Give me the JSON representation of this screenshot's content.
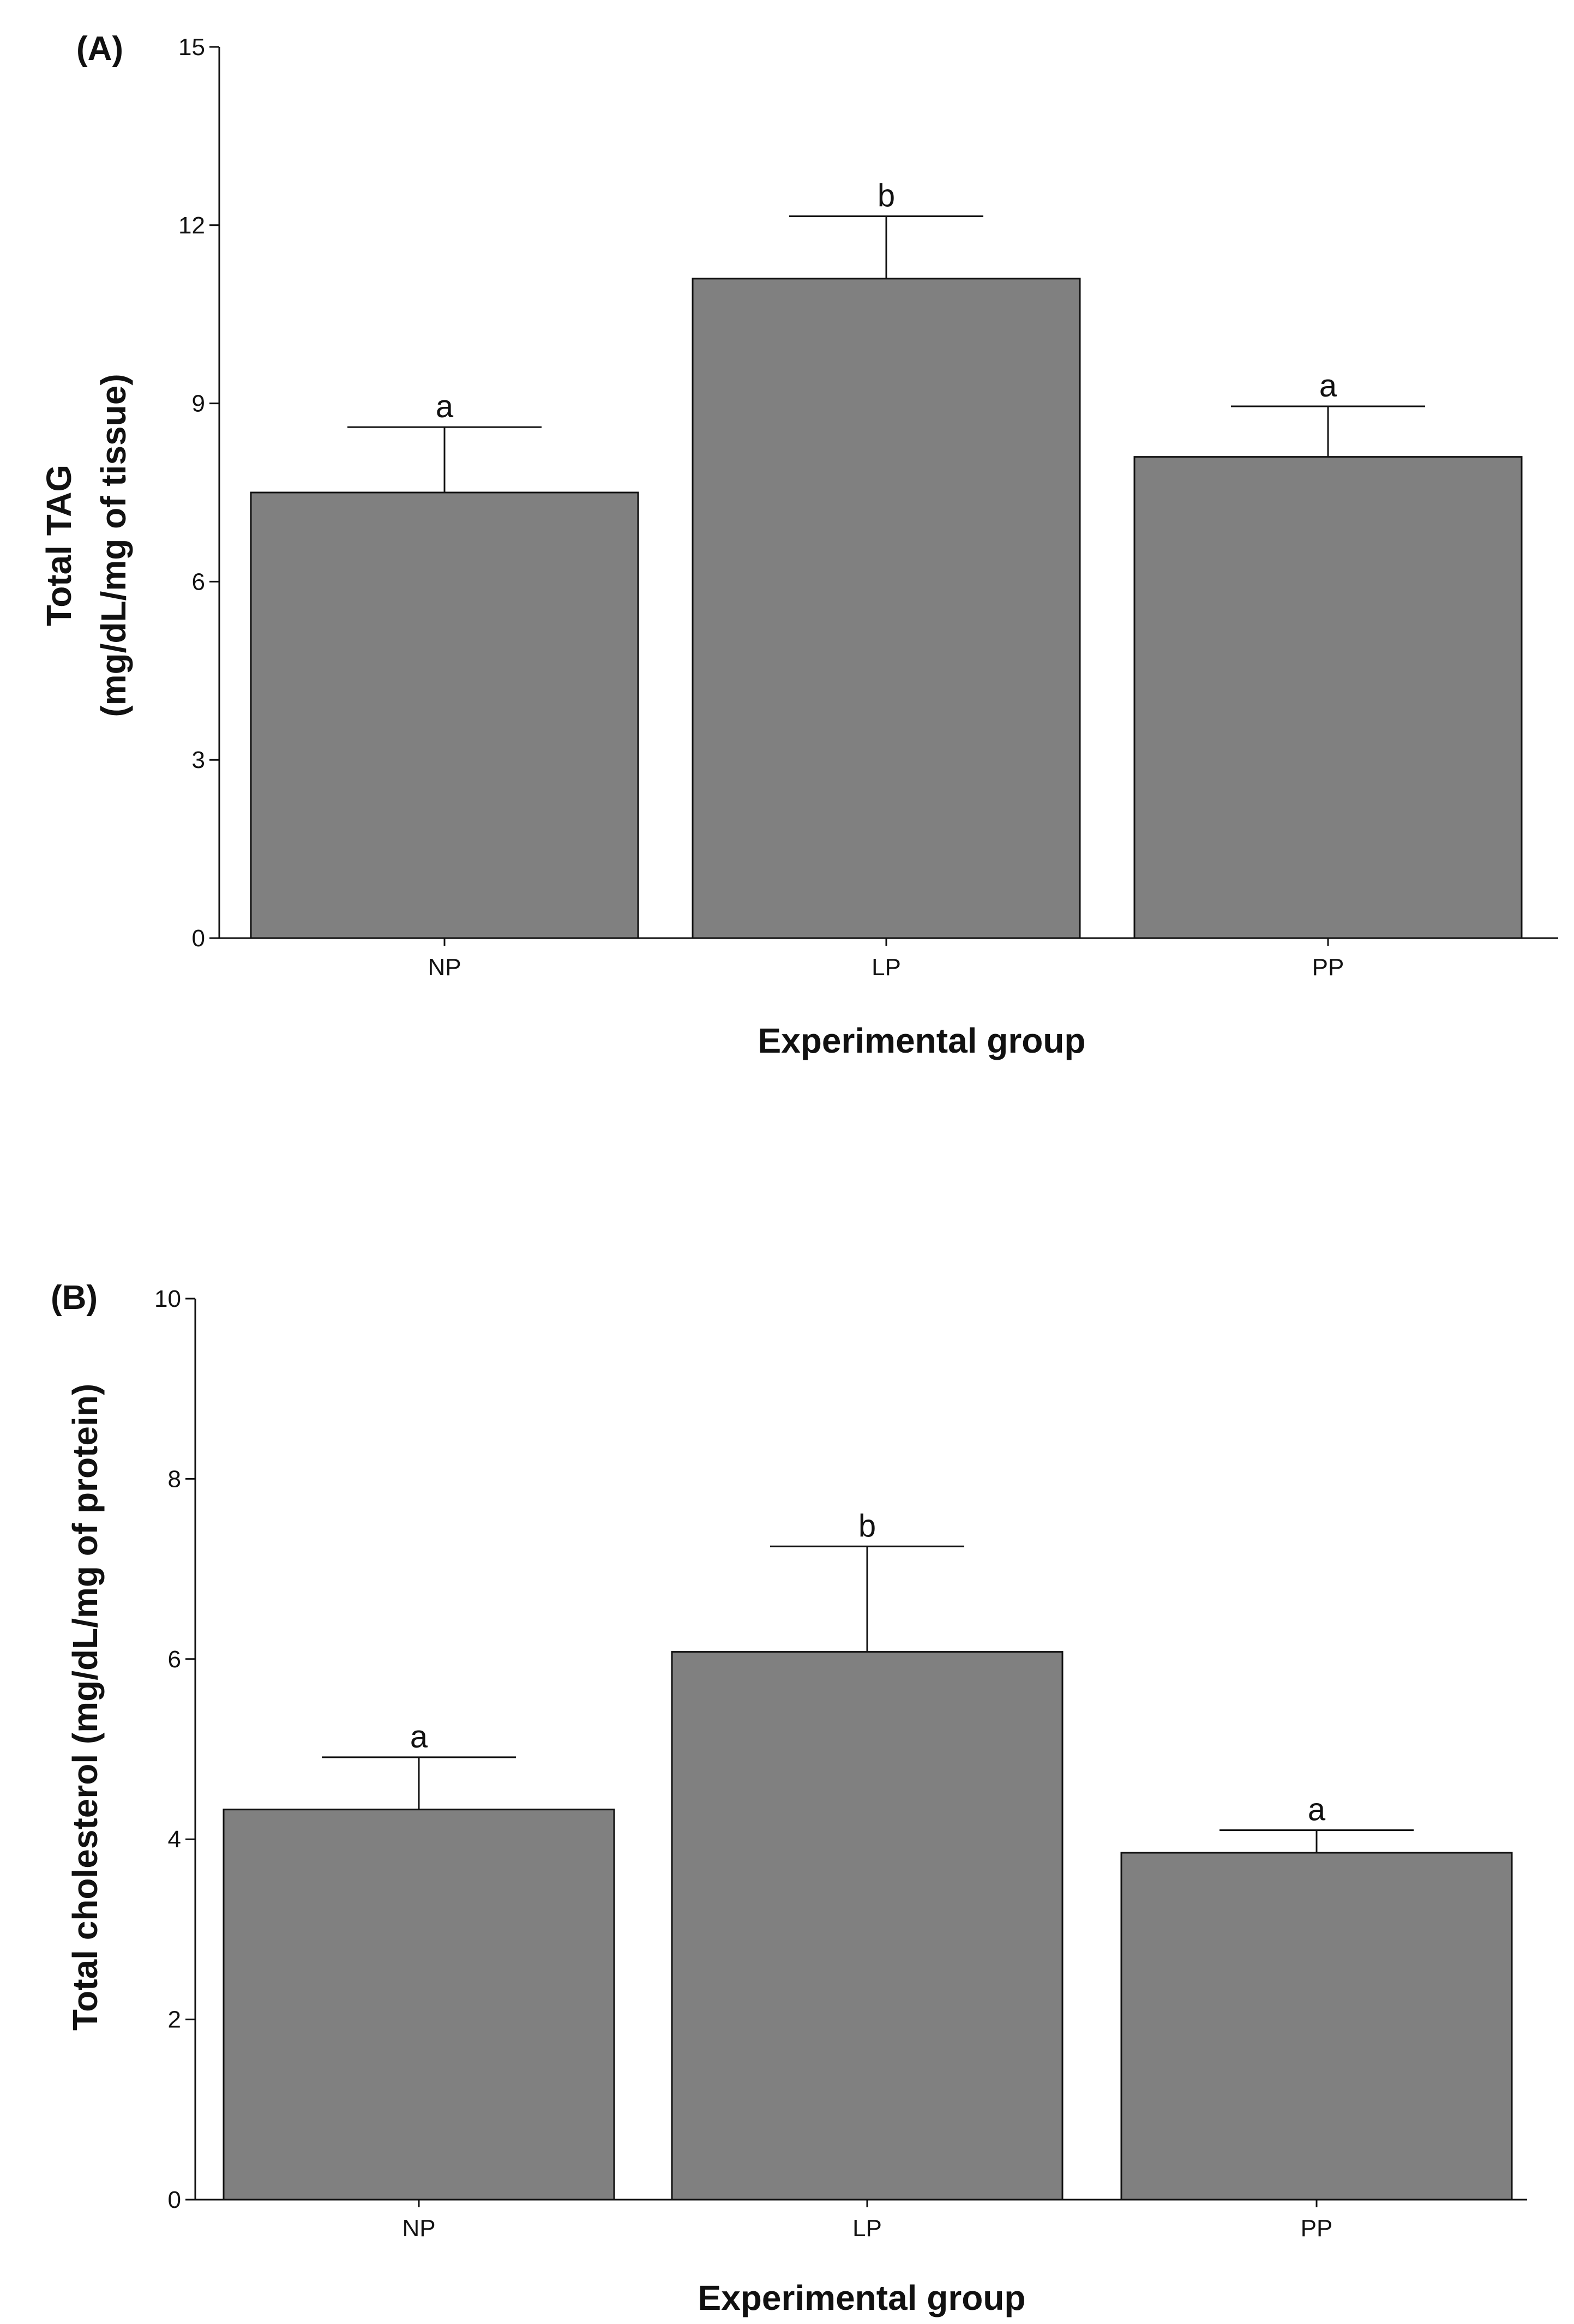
{
  "chart_data": [
    {
      "type": "bar",
      "panel_label": "(A)",
      "categories": [
        "NP",
        "LP",
        "PP"
      ],
      "values": [
        7.5,
        11.1,
        8.1
      ],
      "errors": [
        1.1,
        1.05,
        0.85
      ],
      "significance": [
        "a",
        "b",
        "a"
      ],
      "ylabel_line1": "Total TAG",
      "ylabel_line2": "(mg/dL/mg of tissue)",
      "xlabel": "Experimental group",
      "ylim": [
        0,
        15
      ],
      "yticks": [
        0,
        3,
        6,
        9,
        12,
        15
      ],
      "bar_color": "#808080",
      "grid": false
    },
    {
      "type": "bar",
      "panel_label": "(B)",
      "categories": [
        "NP",
        "LP",
        "PP"
      ],
      "values": [
        4.33,
        6.08,
        3.85
      ],
      "errors": [
        0.58,
        1.17,
        0.25
      ],
      "significance": [
        "a",
        "b",
        "a"
      ],
      "ylabel_line1": "Total cholesterol (mg/dL/mg of protein)",
      "ylabel_line2": "",
      "xlabel": "Experimental group",
      "ylim": [
        0,
        10
      ],
      "yticks": [
        0,
        2,
        4,
        6,
        8,
        10
      ],
      "bar_color": "#808080",
      "grid": false
    }
  ]
}
